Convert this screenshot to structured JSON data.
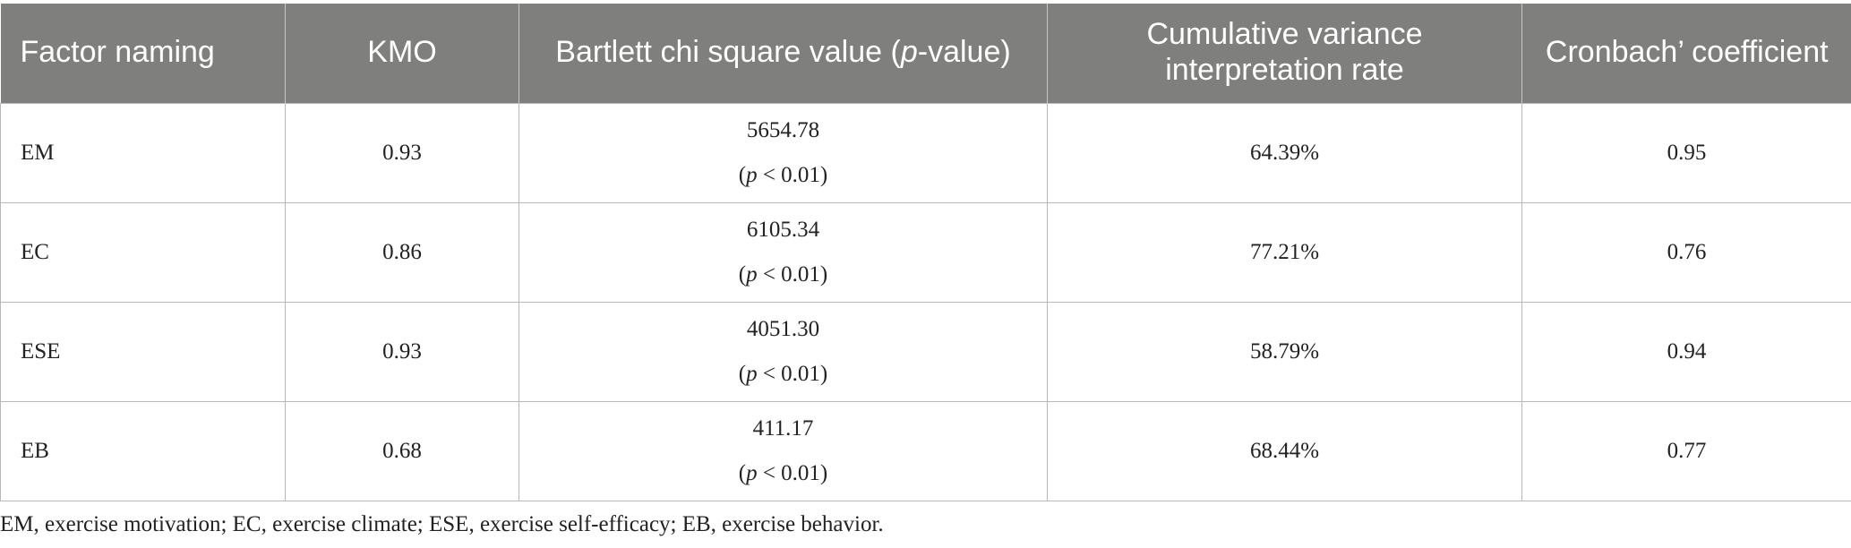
{
  "table": {
    "headers": [
      "Factor naming",
      "KMO",
      "Bartlett chi square value (p-value)",
      "Cumulative variance interpretation rate",
      "Cronbach’ coefficient"
    ],
    "header_parts": {
      "bartlett_prefix": "Bartlett chi square value (",
      "bartlett_italic": "p",
      "bartlett_suffix": "-value)"
    },
    "rows": [
      {
        "factor": "EM",
        "kmo": "0.93",
        "chi": "5654.78",
        "p_letter": "p",
        "p_rest": " < 0.01)",
        "p_open": "(",
        "variance": "64.39%",
        "cronbach": "0.95"
      },
      {
        "factor": "EC",
        "kmo": "0.86",
        "chi": "6105.34",
        "p_letter": "p",
        "p_rest": " < 0.01)",
        "p_open": "(",
        "variance": "77.21%",
        "cronbach": "0.76"
      },
      {
        "factor": "ESE",
        "kmo": "0.93",
        "chi": "4051.30",
        "p_letter": "p",
        "p_rest": " < 0.01)",
        "p_open": "(",
        "variance": "58.79%",
        "cronbach": "0.94"
      },
      {
        "factor": "EB",
        "kmo": "0.68",
        "chi": "411.17",
        "p_letter": "p",
        "p_rest": " < 0.01)",
        "p_open": "(",
        "variance": "68.44%",
        "cronbach": "0.77"
      }
    ]
  },
  "footnote": "EM, exercise motivation; EC, exercise climate; ESE, exercise self-efficacy; EB, exercise behavior."
}
